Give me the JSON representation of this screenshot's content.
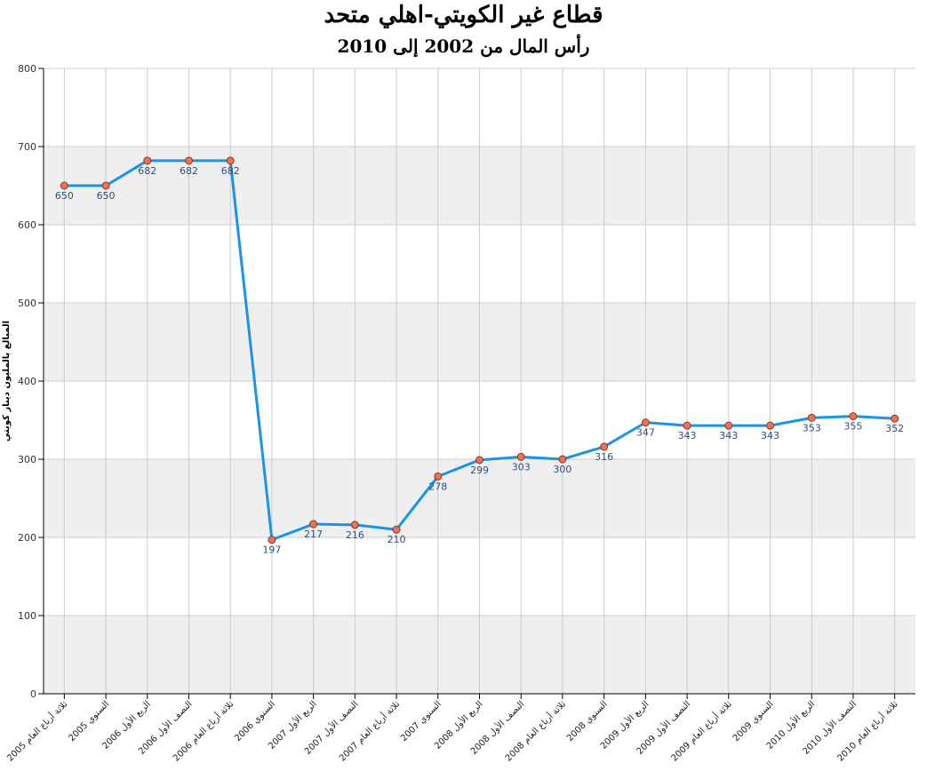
{
  "chart_data": {
    "type": "line",
    "title": "قطاع غير الكويتي-اهلي متحد",
    "subtitle": "رأس المال من 2002 إلى 2010",
    "ylabel": "المبالغ بالمليون دينار كويتي",
    "xlabel": "",
    "ylim": [
      0,
      800
    ],
    "yticks": [
      0,
      100,
      200,
      300,
      400,
      500,
      600,
      700,
      800
    ],
    "grid": true,
    "categories": [
      "ثلاثة أرباع العام 2005",
      "السنوي 2005",
      "الربع الأول 2006",
      "النصف الأول 2006",
      "ثلاثة أرباع العام 2006",
      "السنوي 2006",
      "الربع الأول 2007",
      "النصف الأول 2007",
      "ثلاثة أرباع العام 2007",
      "السنوي 2007",
      "الربع الأول 2008",
      "النصف الأول 2008",
      "ثلاثة أرباع العام 2008",
      "السنوي 2008",
      "الربع الأول 2009",
      "النصف الأول 2009",
      "ثلاثة أرباع العام 2009",
      "السنوي 2009",
      "الربع الأول 2010",
      "النصف الأول 2010",
      "ثلاثة أرباع العام 2010"
    ],
    "series": [
      {
        "values": [
          650,
          650,
          682,
          682,
          682,
          197,
          217,
          216,
          210,
          278,
          299,
          303,
          300,
          316,
          347,
          343,
          343,
          343,
          353,
          355,
          352
        ],
        "line_color": "#1a94e8",
        "marker_color": "#f07050",
        "marker_stroke": "#8a3a22"
      }
    ],
    "colors": {
      "band": "#efefef",
      "grid": "#cccccc",
      "axis": "#000000",
      "label": "#2f4f7f"
    }
  }
}
